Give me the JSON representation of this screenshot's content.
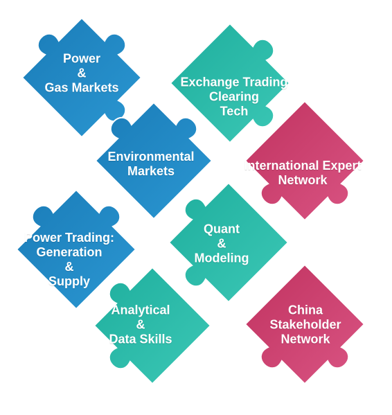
{
  "colors": {
    "blue": "#1f86c1",
    "blue_light": "#2e9bd6",
    "teal": "#25b5a3",
    "teal_light": "#35c7b4",
    "pink": "#c83a6b",
    "pink_light": "#d94f7e"
  },
  "pieces": [
    {
      "id": "power-gas-markets",
      "color": "blue",
      "lines": [
        "Power",
        "&",
        "Gas Markets"
      ]
    },
    {
      "id": "exchange-trading-clearing-tech",
      "color": "teal",
      "lines": [
        "Exchange Trading",
        "Clearing",
        "Tech"
      ]
    },
    {
      "id": "environmental-markets",
      "color": "blue",
      "lines": [
        "Environmental",
        "Markets"
      ]
    },
    {
      "id": "international-expert-network",
      "color": "pink",
      "lines": [
        "International Expert",
        "Network"
      ]
    },
    {
      "id": "power-trading-generation-supply",
      "color": "blue",
      "lines": [
        "Power Trading:",
        "Generation",
        "&",
        "Supply"
      ]
    },
    {
      "id": "quant-modeling",
      "color": "teal",
      "lines": [
        "Quant",
        "&",
        "Modeling"
      ]
    },
    {
      "id": "analytical-data-skills",
      "color": "teal",
      "lines": [
        "Analytical",
        "&",
        "Data Skills"
      ]
    },
    {
      "id": "china-stakeholder-network",
      "color": "pink",
      "lines": [
        "China",
        "Stakeholder",
        "Network"
      ]
    }
  ]
}
